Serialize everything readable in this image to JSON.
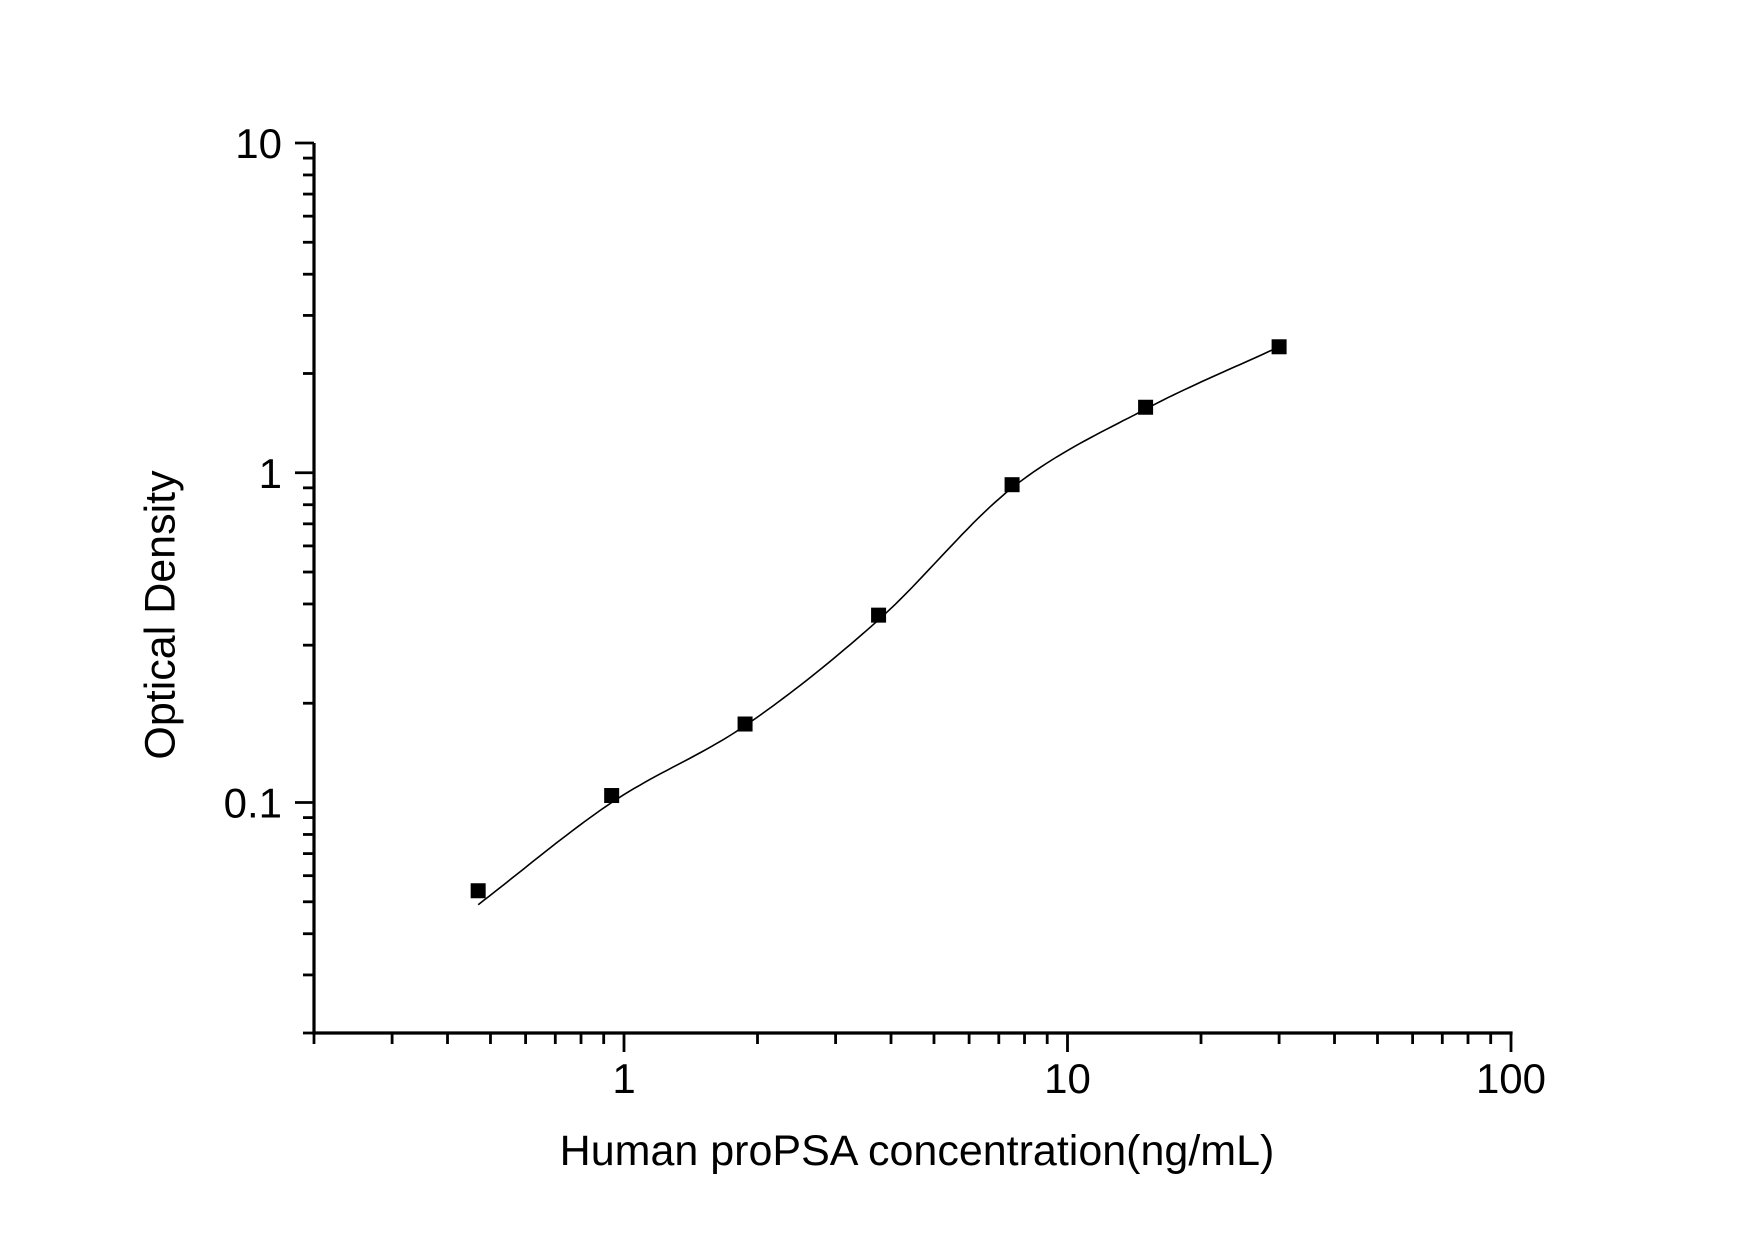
{
  "page": {
    "background": "#ffffff",
    "ink_color": "#000000"
  },
  "chart_data": {
    "type": "scatter",
    "title": "",
    "xlabel": "Human proPSA concentration(ng/mL)",
    "ylabel": "Optical Density",
    "x_scale": "log",
    "y_scale": "log",
    "xlim": [
      0.2,
      100
    ],
    "ylim": [
      0.02,
      10
    ],
    "grid": false,
    "x_major_ticks": [
      1,
      10,
      100
    ],
    "x_major_tick_labels": [
      "1",
      "10",
      "100"
    ],
    "y_major_ticks": [
      0.1,
      1,
      10
    ],
    "y_major_tick_labels": [
      "0.1",
      "1",
      "10"
    ],
    "series": [
      {
        "name": "standard-points",
        "type": "scatter",
        "marker": "filled-square",
        "color": "#000000",
        "x": [
          0.469,
          0.938,
          1.875,
          3.75,
          7.5,
          15,
          30
        ],
        "y": [
          0.054,
          0.105,
          0.173,
          0.37,
          0.92,
          1.58,
          2.41
        ]
      },
      {
        "name": "fit-curve",
        "type": "line",
        "color": "#000000",
        "x": [
          0.469,
          0.938,
          1.875,
          3.75,
          7.5,
          15,
          30
        ],
        "y": [
          0.049,
          0.1,
          0.171,
          0.358,
          0.9,
          1.56,
          2.41
        ]
      }
    ]
  }
}
